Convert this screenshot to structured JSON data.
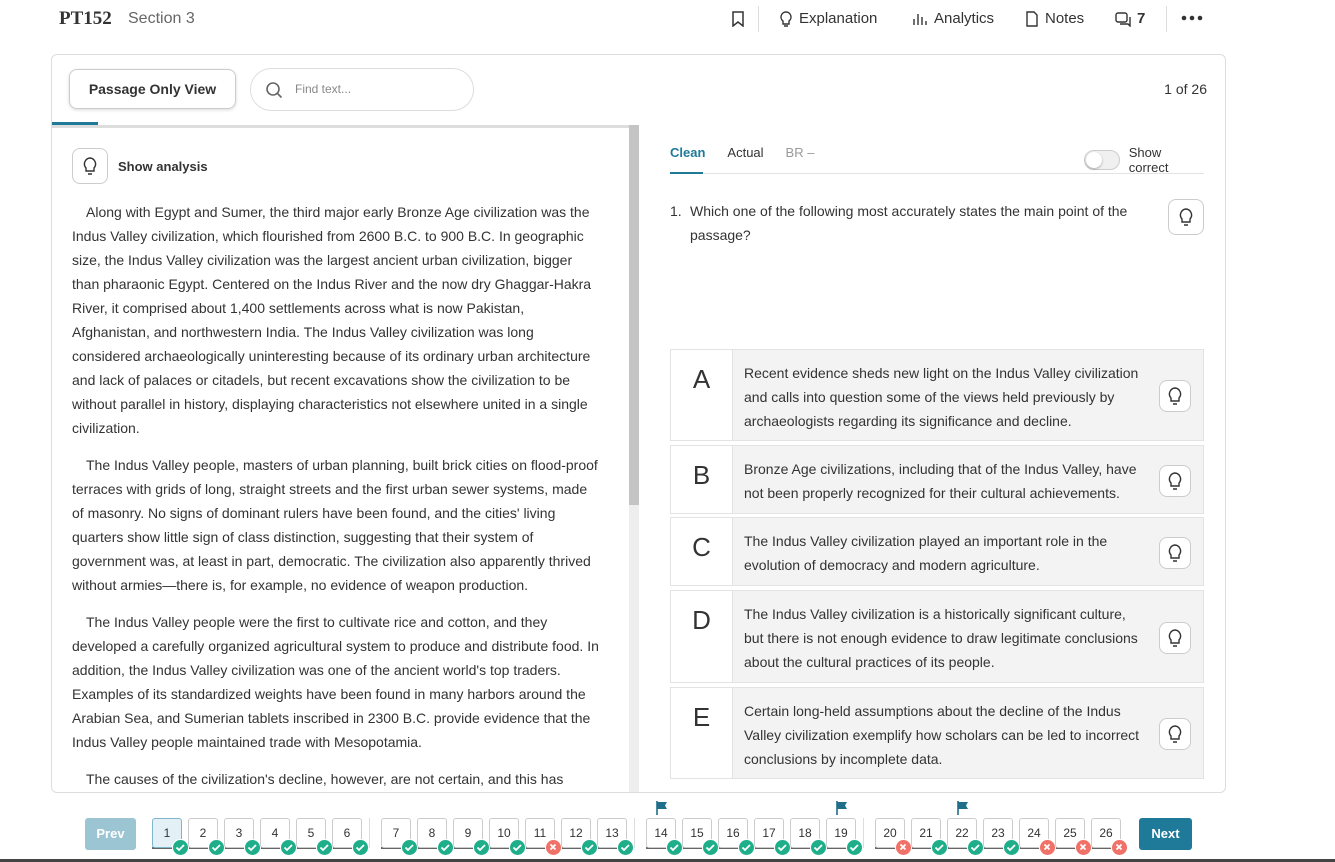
{
  "header": {
    "test": "PT152",
    "section": "Section 3",
    "tools": [
      "Explanation",
      "Analytics",
      "Notes"
    ],
    "comments": "7"
  },
  "toolbar": {
    "view_button": "Passage Only View",
    "search_placeholder": "Find text...",
    "counter": "1 of 26"
  },
  "passage": {
    "show_analysis": "Show analysis",
    "paragraphs": [
      "Along with Egypt and Sumer, the third major early Bronze Age civilization was the Indus Valley civilization, which flourished from 2600 B.C. to 900 B.C. In geographic size, the Indus Valley civilization was the largest ancient urban civilization, bigger than pharaonic Egypt. Centered on the Indus River and the now dry Ghaggar-Hakra River, it comprised about 1,400 settlements across what is now Pakistan, Afghanistan, and northwestern India. The Indus Valley civilization was long considered archaeologically uninteresting because of its ordinary urban architecture and lack of palaces or citadels, but recent excavations show the civilization to be without parallel in history, displaying characteristics not elsewhere united in a single civilization.",
      "The Indus Valley people, masters of urban planning, built brick cities on flood-proof terraces with grids of long, straight streets and the first urban sewer systems, made of masonry. No signs of dominant rulers have been found, and the cities' living quarters show little sign of class distinction, suggesting that their system of government was, at least in part, democratic. The civilization also apparently thrived without armies—there is, for example, no evidence of weapon production.",
      "The Indus Valley people were the first to cultivate rice and cotton, and they developed a carefully organized agricultural system to produce and distribute food. In addition, the Indus Valley civilization was one of the ancient world's top traders. Examples of its standardized weights have been found in many harbors around the Arabian Sea, and Sumerian tablets inscribed in 2300 B.C. provide evidence that the Indus Valley people maintained trade with Mesopotamia.",
      "The causes of the civilization's decline, however, are not certain, and this has"
    ]
  },
  "question": {
    "tabs": [
      "Clean",
      "Actual",
      "BR –"
    ],
    "show_correct": "Show correct",
    "number": "1.",
    "stem": "Which one of the following most accurately states the main point of the passage?",
    "choices": [
      {
        "letter": "A",
        "text": "Recent evidence sheds new light on the Indus Valley civilization and calls into question some of the views held previously by archaeologists regarding its significance and decline."
      },
      {
        "letter": "B",
        "text": "Bronze Age civilizations, including that of the Indus Valley, have not been properly recognized for their cultural achievements."
      },
      {
        "letter": "C",
        "text": "The Indus Valley civilization played an important role in the evolution of democracy and modern agriculture."
      },
      {
        "letter": "D",
        "text": "The Indus Valley civilization is a historically significant culture, but there is not enough evidence to draw legitimate conclusions about the cultural practices of its people."
      },
      {
        "letter": "E",
        "text": "Certain long-held assumptions about the decline of the Indus Valley civilization exemplify how scholars can be led to incorrect conclusions by incomplete data."
      }
    ]
  },
  "nav": {
    "prev": "Prev",
    "next": "Next",
    "groups": [
      [
        {
          "number": 1,
          "status": "correct"
        },
        {
          "number": 2,
          "status": "correct"
        },
        {
          "number": 3,
          "status": "correct"
        },
        {
          "number": 4,
          "status": "correct"
        },
        {
          "number": 5,
          "status": "correct"
        },
        {
          "number": 6,
          "status": "correct"
        }
      ],
      [
        {
          "number": 7,
          "status": "correct"
        },
        {
          "number": 8,
          "status": "correct"
        },
        {
          "number": 9,
          "status": "correct"
        },
        {
          "number": 10,
          "status": "correct"
        },
        {
          "number": 11,
          "status": "wrong"
        },
        {
          "number": 12,
          "status": "correct"
        },
        {
          "number": 13,
          "status": "correct"
        }
      ],
      [
        {
          "number": 14,
          "status": "correct",
          "flag": true
        },
        {
          "number": 15,
          "status": "correct"
        },
        {
          "number": 16,
          "status": "correct"
        },
        {
          "number": 17,
          "status": "correct"
        },
        {
          "number": 18,
          "status": "correct"
        },
        {
          "number": 19,
          "status": "correct",
          "flag": true
        }
      ],
      [
        {
          "number": 20,
          "status": "wrong"
        },
        {
          "number": 21,
          "status": "correct"
        },
        {
          "number": 22,
          "status": "correct",
          "flag": true
        },
        {
          "number": 23,
          "status": "correct"
        },
        {
          "number": 24,
          "status": "wrong"
        },
        {
          "number": 25,
          "status": "wrong"
        },
        {
          "number": 26,
          "status": "wrong"
        }
      ]
    ],
    "current": 1
  }
}
